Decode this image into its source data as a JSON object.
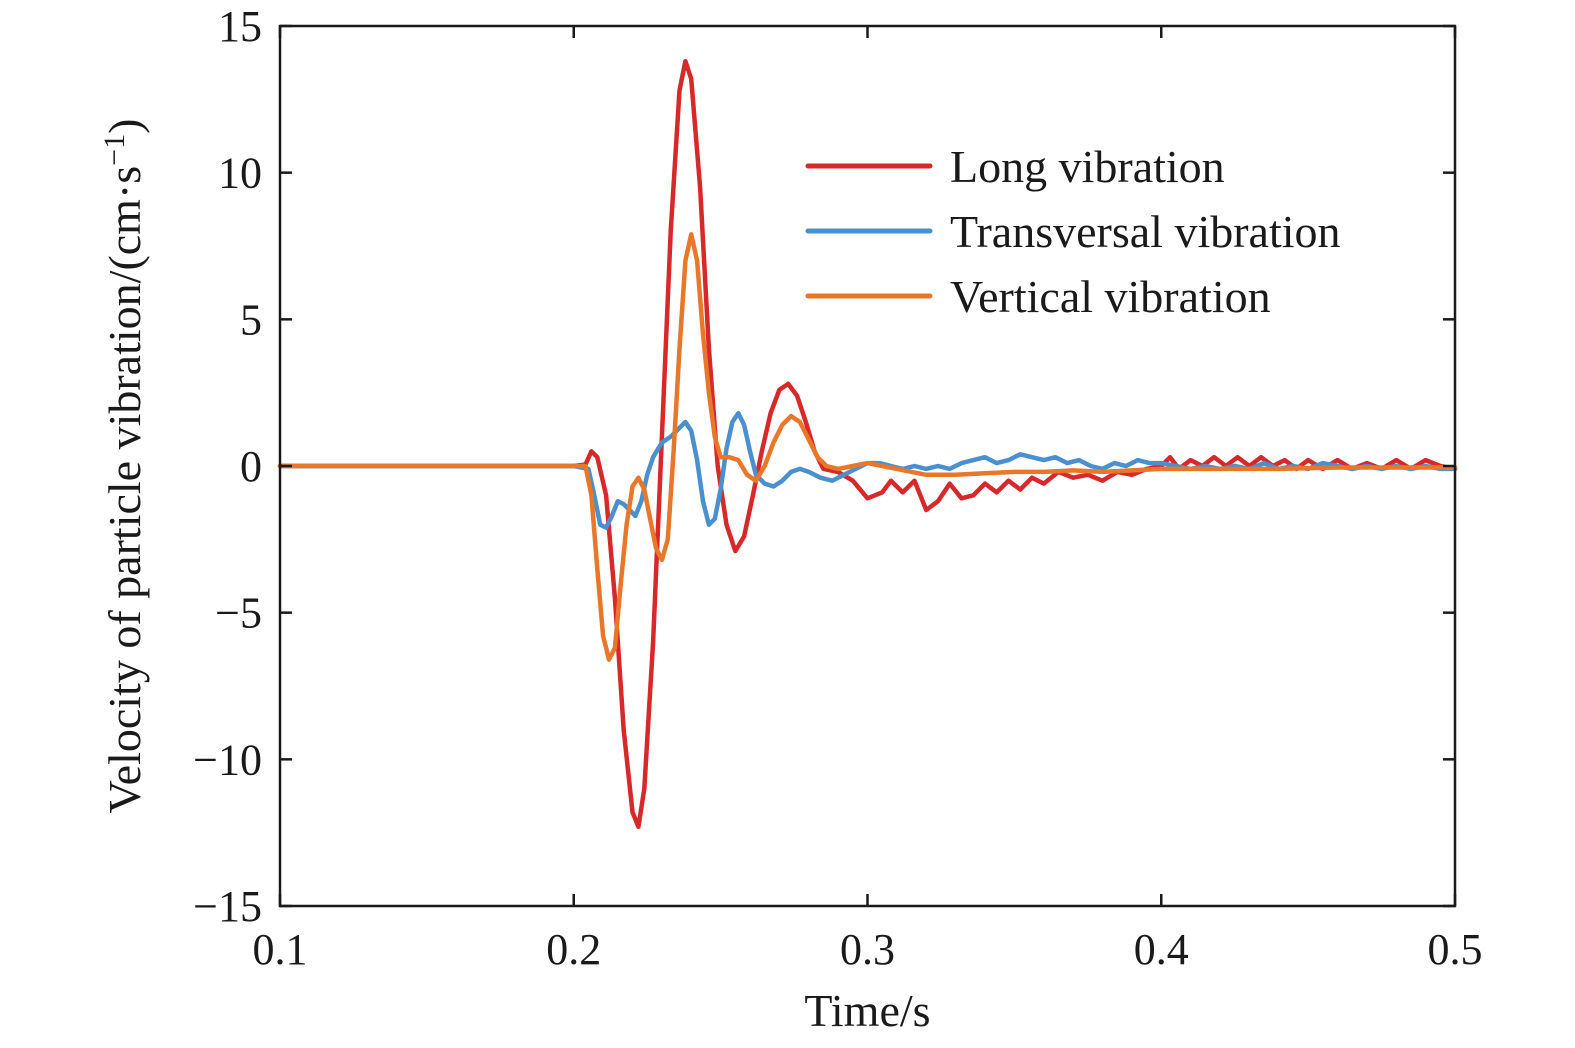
{
  "chart_data": {
    "type": "line",
    "title": "",
    "xlabel": "Time/s",
    "ylabel": "Velocity of particle vibration/(cm·s",
    "ylabel_sup": "−1",
    "ylabel_close": ")",
    "xlim": [
      0.1,
      0.5
    ],
    "ylim": [
      -15,
      15
    ],
    "xticks": [
      0.1,
      0.2,
      0.3,
      0.4,
      0.5
    ],
    "xtick_labels": [
      "0.1",
      "0.2",
      "0.3",
      "0.4",
      "0.5"
    ],
    "yticks": [
      -15,
      -10,
      -5,
      0,
      5,
      10,
      15
    ],
    "ytick_labels": [
      "−15",
      "−10",
      "−5",
      "0",
      "5",
      "10",
      "15"
    ],
    "grid": false,
    "legend_position": "top-right",
    "series": [
      {
        "name": "Long vibration",
        "color": "#d7282a",
        "points": [
          [
            0.1,
            0
          ],
          [
            0.2,
            0
          ],
          [
            0.204,
            0.05
          ],
          [
            0.206,
            0.5
          ],
          [
            0.208,
            0.3
          ],
          [
            0.211,
            -1.0
          ],
          [
            0.214,
            -4.5
          ],
          [
            0.217,
            -9.0
          ],
          [
            0.22,
            -11.8
          ],
          [
            0.222,
            -12.3
          ],
          [
            0.224,
            -11.0
          ],
          [
            0.227,
            -6.0
          ],
          [
            0.23,
            1.0
          ],
          [
            0.233,
            8.0
          ],
          [
            0.236,
            12.8
          ],
          [
            0.238,
            13.8
          ],
          [
            0.24,
            13.2
          ],
          [
            0.243,
            9.5
          ],
          [
            0.246,
            4.0
          ],
          [
            0.249,
            0.0
          ],
          [
            0.252,
            -2.0
          ],
          [
            0.255,
            -2.9
          ],
          [
            0.258,
            -2.4
          ],
          [
            0.261,
            -1.0
          ],
          [
            0.264,
            0.5
          ],
          [
            0.267,
            1.8
          ],
          [
            0.27,
            2.6
          ],
          [
            0.273,
            2.8
          ],
          [
            0.276,
            2.4
          ],
          [
            0.279,
            1.5
          ],
          [
            0.282,
            0.5
          ],
          [
            0.285,
            -0.1
          ],
          [
            0.29,
            -0.2
          ],
          [
            0.295,
            -0.5
          ],
          [
            0.3,
            -1.1
          ],
          [
            0.305,
            -0.9
          ],
          [
            0.308,
            -0.5
          ],
          [
            0.312,
            -0.9
          ],
          [
            0.316,
            -0.5
          ],
          [
            0.32,
            -1.5
          ],
          [
            0.324,
            -1.2
          ],
          [
            0.328,
            -0.6
          ],
          [
            0.332,
            -1.1
          ],
          [
            0.336,
            -1.0
          ],
          [
            0.34,
            -0.6
          ],
          [
            0.344,
            -0.9
          ],
          [
            0.348,
            -0.5
          ],
          [
            0.352,
            -0.8
          ],
          [
            0.356,
            -0.4
          ],
          [
            0.36,
            -0.6
          ],
          [
            0.365,
            -0.2
          ],
          [
            0.37,
            -0.4
          ],
          [
            0.375,
            -0.3
          ],
          [
            0.38,
            -0.5
          ],
          [
            0.385,
            -0.2
          ],
          [
            0.39,
            -0.3
          ],
          [
            0.395,
            -0.1
          ],
          [
            0.4,
            0.0
          ],
          [
            0.403,
            0.3
          ],
          [
            0.406,
            -0.1
          ],
          [
            0.41,
            0.2
          ],
          [
            0.414,
            0.0
          ],
          [
            0.418,
            0.3
          ],
          [
            0.422,
            0.0
          ],
          [
            0.426,
            0.3
          ],
          [
            0.43,
            0.0
          ],
          [
            0.434,
            0.3
          ],
          [
            0.438,
            0.0
          ],
          [
            0.442,
            0.2
          ],
          [
            0.446,
            -0.1
          ],
          [
            0.45,
            0.2
          ],
          [
            0.455,
            -0.1
          ],
          [
            0.46,
            0.2
          ],
          [
            0.465,
            -0.1
          ],
          [
            0.47,
            0.1
          ],
          [
            0.475,
            -0.1
          ],
          [
            0.48,
            0.2
          ],
          [
            0.485,
            -0.1
          ],
          [
            0.49,
            0.2
          ],
          [
            0.495,
            0.0
          ],
          [
            0.5,
            -0.1
          ]
        ]
      },
      {
        "name": "Transversal vibration",
        "color": "#4a90cf",
        "points": [
          [
            0.1,
            0
          ],
          [
            0.2,
            0
          ],
          [
            0.205,
            -0.1
          ],
          [
            0.207,
            -1.0
          ],
          [
            0.209,
            -2.0
          ],
          [
            0.211,
            -2.1
          ],
          [
            0.213,
            -1.7
          ],
          [
            0.215,
            -1.2
          ],
          [
            0.217,
            -1.3
          ],
          [
            0.219,
            -1.5
          ],
          [
            0.221,
            -1.7
          ],
          [
            0.223,
            -1.2
          ],
          [
            0.225,
            -0.3
          ],
          [
            0.227,
            0.3
          ],
          [
            0.23,
            0.8
          ],
          [
            0.233,
            1.0
          ],
          [
            0.236,
            1.3
          ],
          [
            0.238,
            1.5
          ],
          [
            0.24,
            1.2
          ],
          [
            0.242,
            0.2
          ],
          [
            0.244,
            -1.2
          ],
          [
            0.246,
            -2.0
          ],
          [
            0.248,
            -1.8
          ],
          [
            0.25,
            -0.8
          ],
          [
            0.252,
            0.6
          ],
          [
            0.254,
            1.5
          ],
          [
            0.256,
            1.8
          ],
          [
            0.258,
            1.4
          ],
          [
            0.26,
            0.5
          ],
          [
            0.262,
            -0.3
          ],
          [
            0.265,
            -0.6
          ],
          [
            0.268,
            -0.7
          ],
          [
            0.271,
            -0.5
          ],
          [
            0.274,
            -0.2
          ],
          [
            0.277,
            -0.1
          ],
          [
            0.28,
            -0.2
          ],
          [
            0.284,
            -0.4
          ],
          [
            0.288,
            -0.5
          ],
          [
            0.292,
            -0.3
          ],
          [
            0.296,
            -0.1
          ],
          [
            0.3,
            0.1
          ],
          [
            0.304,
            0.1
          ],
          [
            0.308,
            0.0
          ],
          [
            0.312,
            -0.1
          ],
          [
            0.316,
            -0.0
          ],
          [
            0.32,
            -0.1
          ],
          [
            0.324,
            0.0
          ],
          [
            0.328,
            -0.1
          ],
          [
            0.332,
            0.1
          ],
          [
            0.336,
            0.2
          ],
          [
            0.34,
            0.3
          ],
          [
            0.344,
            0.1
          ],
          [
            0.348,
            0.2
          ],
          [
            0.352,
            0.4
          ],
          [
            0.356,
            0.3
          ],
          [
            0.36,
            0.2
          ],
          [
            0.364,
            0.3
          ],
          [
            0.368,
            0.1
          ],
          [
            0.372,
            0.2
          ],
          [
            0.376,
            0.0
          ],
          [
            0.38,
            -0.1
          ],
          [
            0.384,
            0.1
          ],
          [
            0.388,
            0.0
          ],
          [
            0.392,
            0.2
          ],
          [
            0.396,
            0.1
          ],
          [
            0.4,
            0.1
          ],
          [
            0.405,
            0.0
          ],
          [
            0.41,
            -0.1
          ],
          [
            0.415,
            0.0
          ],
          [
            0.42,
            -0.1
          ],
          [
            0.425,
            0.0
          ],
          [
            0.43,
            -0.1
          ],
          [
            0.435,
            0.1
          ],
          [
            0.44,
            -0.1
          ],
          [
            0.445,
            0.0
          ],
          [
            0.45,
            -0.1
          ],
          [
            0.455,
            0.1
          ],
          [
            0.46,
            0.0
          ],
          [
            0.465,
            -0.1
          ],
          [
            0.47,
            0.0
          ],
          [
            0.475,
            -0.1
          ],
          [
            0.48,
            0.0
          ],
          [
            0.485,
            -0.1
          ],
          [
            0.49,
            0.0
          ],
          [
            0.495,
            -0.1
          ],
          [
            0.5,
            -0.1
          ]
        ]
      },
      {
        "name": "Vertical vibration",
        "color": "#e8772a",
        "points": [
          [
            0.1,
            0
          ],
          [
            0.2,
            0
          ],
          [
            0.204,
            0.0
          ],
          [
            0.206,
            -1.0
          ],
          [
            0.208,
            -3.5
          ],
          [
            0.21,
            -5.8
          ],
          [
            0.212,
            -6.6
          ],
          [
            0.214,
            -6.2
          ],
          [
            0.216,
            -4.0
          ],
          [
            0.218,
            -2.0
          ],
          [
            0.22,
            -0.7
          ],
          [
            0.222,
            -0.4
          ],
          [
            0.224,
            -0.8
          ],
          [
            0.226,
            -1.8
          ],
          [
            0.228,
            -2.8
          ],
          [
            0.23,
            -3.2
          ],
          [
            0.232,
            -2.5
          ],
          [
            0.234,
            0.5
          ],
          [
            0.236,
            4.0
          ],
          [
            0.238,
            7.0
          ],
          [
            0.24,
            7.9
          ],
          [
            0.242,
            7.0
          ],
          [
            0.244,
            4.5
          ],
          [
            0.246,
            2.5
          ],
          [
            0.248,
            1.0
          ],
          [
            0.25,
            0.3
          ],
          [
            0.253,
            0.3
          ],
          [
            0.256,
            0.2
          ],
          [
            0.259,
            -0.3
          ],
          [
            0.262,
            -0.5
          ],
          [
            0.265,
            0.0
          ],
          [
            0.268,
            0.8
          ],
          [
            0.271,
            1.4
          ],
          [
            0.274,
            1.7
          ],
          [
            0.277,
            1.5
          ],
          [
            0.28,
            0.9
          ],
          [
            0.283,
            0.3
          ],
          [
            0.286,
            0.0
          ],
          [
            0.29,
            -0.1
          ],
          [
            0.295,
            0.0
          ],
          [
            0.3,
            0.1
          ],
          [
            0.305,
            0.0
          ],
          [
            0.31,
            -0.1
          ],
          [
            0.315,
            -0.2
          ],
          [
            0.32,
            -0.3
          ],
          [
            0.33,
            -0.3
          ],
          [
            0.34,
            -0.25
          ],
          [
            0.35,
            -0.2
          ],
          [
            0.36,
            -0.2
          ],
          [
            0.37,
            -0.15
          ],
          [
            0.38,
            -0.2
          ],
          [
            0.39,
            -0.15
          ],
          [
            0.4,
            -0.1
          ],
          [
            0.42,
            -0.1
          ],
          [
            0.44,
            -0.1
          ],
          [
            0.46,
            -0.05
          ],
          [
            0.48,
            -0.05
          ],
          [
            0.5,
            -0.05
          ]
        ]
      }
    ]
  }
}
